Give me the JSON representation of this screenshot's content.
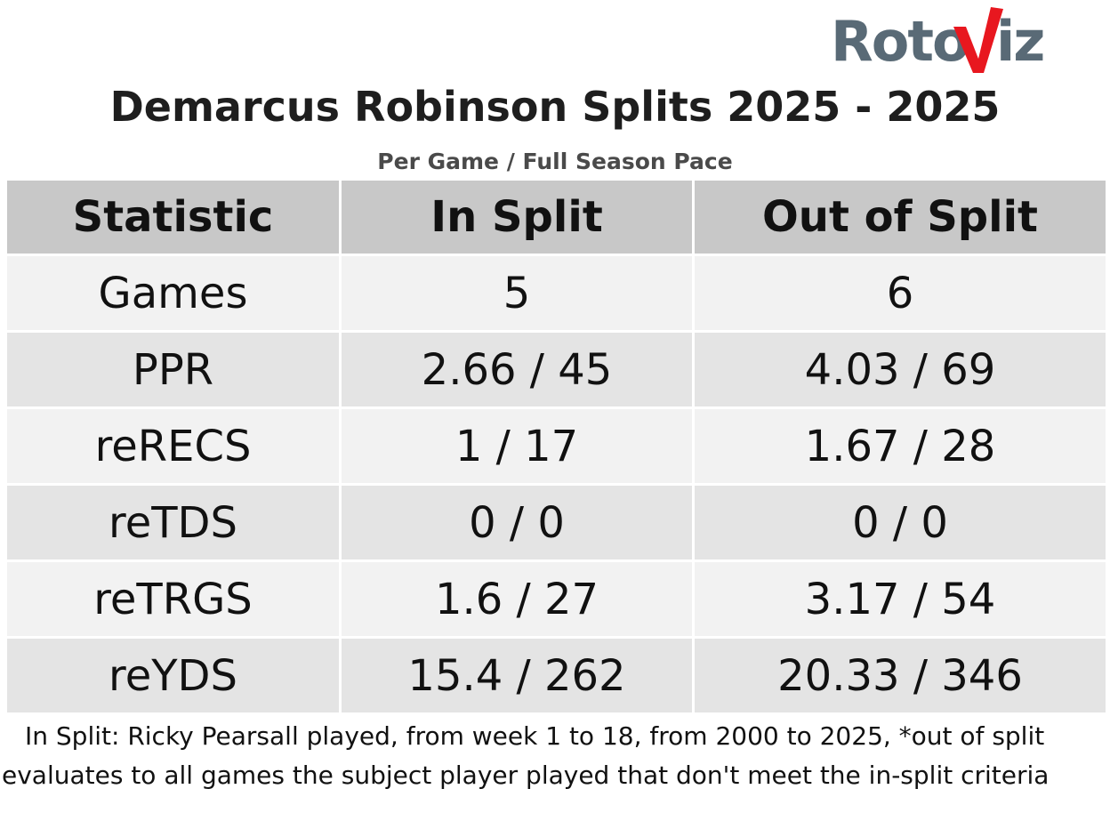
{
  "brand": {
    "logo_left": "Roto",
    "logo_right": "iz",
    "logo_text_color": "#596a76",
    "logo_v_color": "#e8171f"
  },
  "title": "Demarcus Robinson Splits 2025 - 2025",
  "subtitle": "Per Game / Full Season Pace",
  "table": {
    "headers": [
      "Statistic",
      "In Split",
      "Out of Split"
    ],
    "rows": [
      {
        "stat": "Games",
        "in_split": "5",
        "out_of_split": "6"
      },
      {
        "stat": "PPR",
        "in_split": "2.66 / 45",
        "out_of_split": "4.03 / 69"
      },
      {
        "stat": "reRECS",
        "in_split": "1 / 17",
        "out_of_split": "1.67 / 28"
      },
      {
        "stat": "reTDS",
        "in_split": "0 / 0",
        "out_of_split": "0 / 0"
      },
      {
        "stat": "reTRGS",
        "in_split": "1.6 / 27",
        "out_of_split": "3.17 / 54"
      },
      {
        "stat": "reYDS",
        "in_split": "15.4 / 262",
        "out_of_split": "20.33 / 346"
      }
    ],
    "colors": {
      "header_bg": "#c8c8c8",
      "row_light": "#f2f2f2",
      "row_dark": "#e4e4e4"
    }
  },
  "footnote": "In Split: Ricky Pearsall played, from week 1 to 18, from 2000 to 2025,  *out of split evaluates to all games the subject player played that don't meet the in-split criteria"
}
